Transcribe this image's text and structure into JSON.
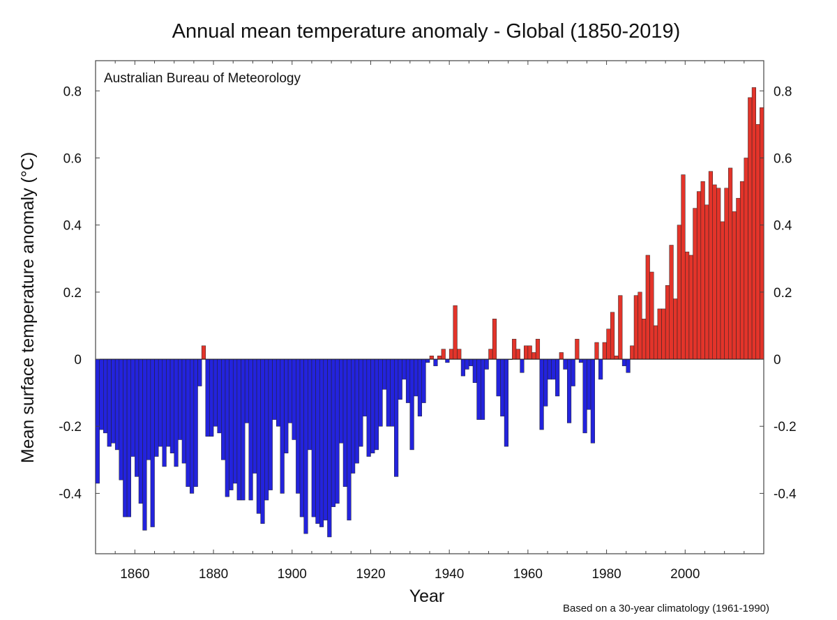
{
  "chart_data": {
    "type": "bar",
    "title": "Annual mean temperature anomaly - Global (1850-2019)",
    "source": "Australian Bureau of Meteorology",
    "footnote": "Based on a 30-year climatology (1961-1990)",
    "xlabel": "Year",
    "ylabel": "Mean surface temperature anomaly (°C)",
    "ylim": [
      -0.58,
      0.89
    ],
    "xlim": [
      1850,
      2020
    ],
    "yticks": [
      -0.4,
      -0.2,
      0,
      0.2,
      0.4,
      0.6,
      0.8
    ],
    "ytick_labels": [
      "-0.4",
      "-0.2",
      "0",
      "0.2",
      "0.4",
      "0.6",
      "0.8"
    ],
    "xticks": [
      1860,
      1880,
      1900,
      1920,
      1940,
      1960,
      1980,
      2000
    ],
    "xtick_labels": [
      "1860",
      "1880",
      "1900",
      "1920",
      "1940",
      "1960",
      "1980",
      "2000"
    ],
    "grid": false,
    "colors": {
      "positive": "#e3342a",
      "negative": "#2323dd",
      "edge": "#222222"
    },
    "start_year": 1850,
    "values": [
      -0.37,
      -0.21,
      -0.22,
      -0.26,
      -0.25,
      -0.27,
      -0.36,
      -0.47,
      -0.47,
      -0.29,
      -0.35,
      -0.43,
      -0.51,
      -0.3,
      -0.5,
      -0.29,
      -0.26,
      -0.32,
      -0.26,
      -0.28,
      -0.32,
      -0.24,
      -0.31,
      -0.38,
      -0.4,
      -0.38,
      -0.08,
      0.04,
      -0.23,
      -0.23,
      -0.2,
      -0.22,
      -0.3,
      -0.41,
      -0.39,
      -0.37,
      -0.42,
      -0.42,
      -0.19,
      -0.42,
      -0.34,
      -0.46,
      -0.49,
      -0.42,
      -0.39,
      -0.18,
      -0.2,
      -0.4,
      -0.28,
      -0.19,
      -0.24,
      -0.4,
      -0.47,
      -0.52,
      -0.27,
      -0.47,
      -0.49,
      -0.5,
      -0.48,
      -0.53,
      -0.44,
      -0.43,
      -0.25,
      -0.38,
      -0.48,
      -0.34,
      -0.31,
      -0.26,
      -0.17,
      -0.29,
      -0.28,
      -0.27,
      -0.2,
      -0.09,
      -0.2,
      -0.2,
      -0.35,
      -0.12,
      -0.06,
      -0.13,
      -0.27,
      -0.11,
      -0.17,
      -0.13,
      -0.01,
      0.01,
      -0.02,
      0.01,
      0.03,
      -0.01,
      0.03,
      0.16,
      0.03,
      -0.05,
      -0.03,
      -0.02,
      -0.07,
      -0.18,
      -0.18,
      -0.03,
      0.03,
      0.12,
      -0.11,
      -0.17,
      -0.26,
      0.0,
      0.06,
      0.03,
      -0.04,
      0.04,
      0.04,
      0.02,
      0.06,
      -0.21,
      -0.14,
      -0.06,
      -0.06,
      -0.11,
      0.02,
      -0.03,
      -0.19,
      -0.08,
      0.06,
      -0.01,
      -0.22,
      -0.15,
      -0.25,
      0.05,
      -0.06,
      0.05,
      0.09,
      0.14,
      0.01,
      0.19,
      -0.02,
      -0.04,
      0.04,
      0.19,
      0.2,
      0.12,
      0.31,
      0.26,
      0.1,
      0.15,
      0.15,
      0.22,
      0.34,
      0.18,
      0.4,
      0.55,
      0.32,
      0.31,
      0.45,
      0.5,
      0.53,
      0.46,
      0.56,
      0.52,
      0.51,
      0.41,
      0.51,
      0.57,
      0.44,
      0.48,
      0.53,
      0.6,
      0.78,
      0.81,
      0.7,
      0.75
    ]
  }
}
